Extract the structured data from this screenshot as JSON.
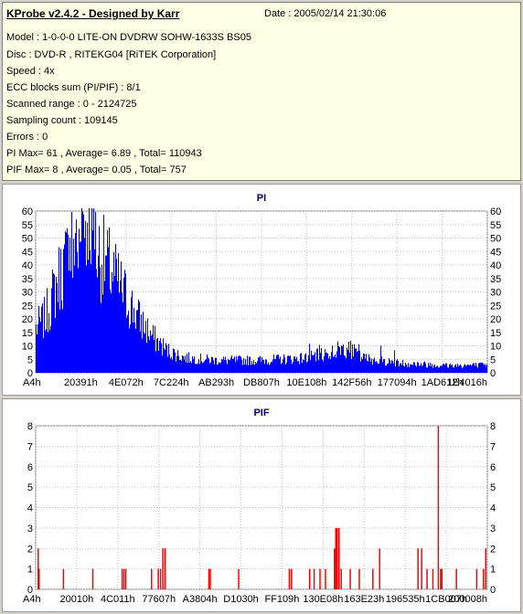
{
  "info": {
    "title": "KProbe v2.4.2 - Designed by Karr",
    "date": "Date : 2005/02/14 21:30:06",
    "lines": [
      "Model : 1-0-0-0 LITE-ON DVDRW SOHW-1633S BS05",
      "Disc : DVD-R , RITEKG04 [RiTEK Corporation]",
      "Speed : 4x",
      "ECC blocks sum (PI/PIF) : 8/1",
      "Scanned range : 0 - 2124725",
      "Sampling count : 109145",
      "Errors : 0",
      "PI Max= 61 , Average= 6.89 , Total= 110943",
      "PIF Max= 8 , Average= 0.05 , Total= 757"
    ]
  },
  "chart_data": [
    {
      "type": "bar",
      "title": "PI",
      "ylim": [
        0,
        60
      ],
      "yticks": [
        0,
        5,
        10,
        15,
        20,
        25,
        30,
        35,
        40,
        45,
        50,
        55,
        60
      ],
      "xtick_labels": [
        "A4h",
        "20391h",
        "4E072h",
        "7C224h",
        "AB293h",
        "DB807h",
        "10E108h",
        "142F56h",
        "177094h",
        "1AD612h",
        "1E4016h"
      ],
      "grid": true,
      "color": "#0000ff",
      "profile": [
        [
          0,
          18
        ],
        [
          0.02,
          22
        ],
        [
          0.05,
          38
        ],
        [
          0.08,
          50
        ],
        [
          0.1,
          55
        ],
        [
          0.12,
          55
        ],
        [
          0.14,
          48
        ],
        [
          0.17,
          40
        ],
        [
          0.2,
          30
        ],
        [
          0.23,
          21
        ],
        [
          0.26,
          14
        ],
        [
          0.29,
          9
        ],
        [
          0.33,
          6
        ],
        [
          0.4,
          5
        ],
        [
          0.5,
          5
        ],
        [
          0.6,
          6
        ],
        [
          0.65,
          8
        ],
        [
          0.68,
          10
        ],
        [
          0.7,
          9
        ],
        [
          0.72,
          6
        ],
        [
          0.8,
          4
        ],
        [
          0.9,
          3
        ],
        [
          1.0,
          3
        ]
      ]
    },
    {
      "type": "bar",
      "title": "PIF",
      "ylim": [
        0,
        8
      ],
      "yticks": [
        0,
        1,
        2,
        3,
        4,
        5,
        6,
        7,
        8
      ],
      "xtick_labels": [
        "A4h",
        "20010h",
        "4C011h",
        "77607h",
        "A3804h",
        "D1030h",
        "FF109h",
        "130E08h",
        "163E23h",
        "196535h",
        "1CB007h",
        "200008h"
      ],
      "grid": true,
      "color": "#ff0000",
      "bars": [
        [
          0.004,
          2
        ],
        [
          0.006,
          1
        ],
        [
          0.06,
          1
        ],
        [
          0.125,
          1
        ],
        [
          0.19,
          1
        ],
        [
          0.194,
          1
        ],
        [
          0.198,
          1
        ],
        [
          0.255,
          1
        ],
        [
          0.27,
          1
        ],
        [
          0.275,
          1
        ],
        [
          0.28,
          2
        ],
        [
          0.285,
          2
        ],
        [
          0.382,
          1
        ],
        [
          0.385,
          1
        ],
        [
          0.448,
          1
        ],
        [
          0.56,
          1
        ],
        [
          0.565,
          1
        ],
        [
          0.605,
          1
        ],
        [
          0.615,
          1
        ],
        [
          0.628,
          1
        ],
        [
          0.64,
          1
        ],
        [
          0.66,
          2
        ],
        [
          0.663,
          3
        ],
        [
          0.666,
          3
        ],
        [
          0.67,
          3
        ],
        [
          0.675,
          1
        ],
        [
          0.695,
          1
        ],
        [
          0.715,
          1
        ],
        [
          0.745,
          1
        ],
        [
          0.76,
          2
        ],
        [
          0.845,
          2
        ],
        [
          0.853,
          2
        ],
        [
          0.865,
          1
        ],
        [
          0.878,
          1
        ],
        [
          0.89,
          8
        ],
        [
          0.895,
          1
        ],
        [
          0.898,
          1
        ],
        [
          0.93,
          1
        ],
        [
          0.975,
          1
        ],
        [
          0.99,
          1
        ],
        [
          0.995,
          2
        ]
      ]
    }
  ]
}
